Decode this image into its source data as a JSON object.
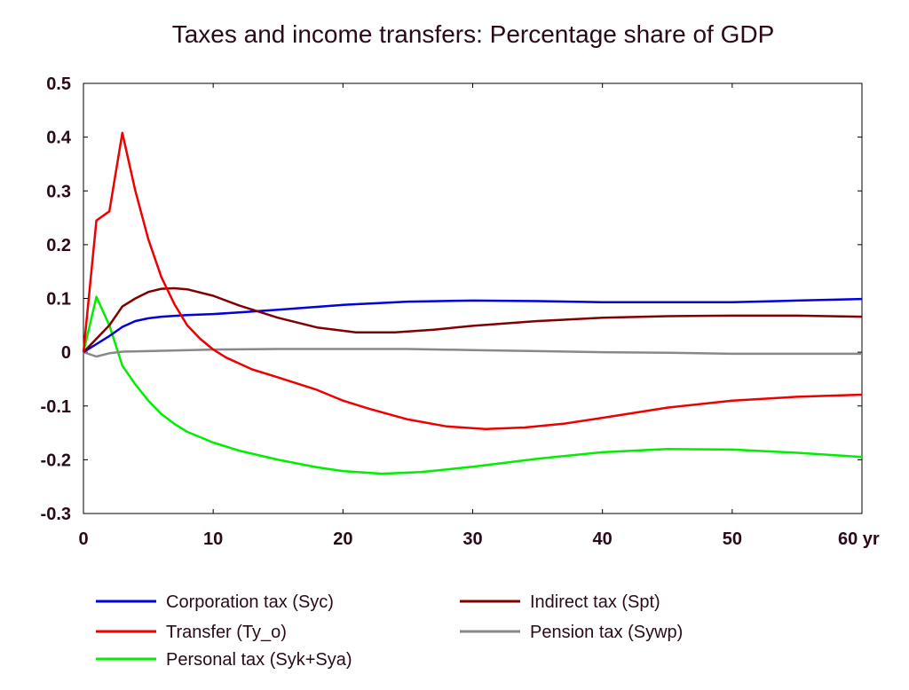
{
  "chart_data": {
    "type": "line",
    "title": "Taxes and income transfers: Percentage share of GDP",
    "xlabel": "",
    "ylabel": "",
    "xlim": [
      0,
      60
    ],
    "ylim": [
      -0.3,
      0.5
    ],
    "x_ticks": [
      {
        "value": 0,
        "label": "0"
      },
      {
        "value": 10,
        "label": "10"
      },
      {
        "value": 20,
        "label": "20"
      },
      {
        "value": 30,
        "label": "30"
      },
      {
        "value": 40,
        "label": "40"
      },
      {
        "value": 50,
        "label": "50"
      },
      {
        "value": 60,
        "label": "60 yr"
      }
    ],
    "y_ticks": [
      {
        "value": 0.5,
        "label": "0.5"
      },
      {
        "value": 0.4,
        "label": "0.4"
      },
      {
        "value": 0.3,
        "label": "0.3"
      },
      {
        "value": 0.2,
        "label": "0.2"
      },
      {
        "value": 0.1,
        "label": "0.1"
      },
      {
        "value": 0,
        "label": "0"
      },
      {
        "value": -0.1,
        "label": "-0.1"
      },
      {
        "value": -0.2,
        "label": "-0.2"
      },
      {
        "value": -0.3,
        "label": "-0.3"
      }
    ],
    "grid": false,
    "legend_position": "bottom",
    "series": [
      {
        "name": "Corporation tax (Syc)",
        "color": "#0000e0",
        "points": [
          [
            0,
            0
          ],
          [
            1,
            0.015
          ],
          [
            2,
            0.03
          ],
          [
            3,
            0.047
          ],
          [
            4,
            0.058
          ],
          [
            5,
            0.063
          ],
          [
            6,
            0.066
          ],
          [
            8,
            0.069
          ],
          [
            10,
            0.071
          ],
          [
            12,
            0.074
          ],
          [
            15,
            0.079
          ],
          [
            20,
            0.088
          ],
          [
            25,
            0.094
          ],
          [
            30,
            0.096
          ],
          [
            35,
            0.095
          ],
          [
            40,
            0.093
          ],
          [
            45,
            0.093
          ],
          [
            50,
            0.093
          ],
          [
            55,
            0.096
          ],
          [
            60,
            0.099
          ]
        ]
      },
      {
        "name": "Indirect tax (Spt)",
        "color": "#800000",
        "points": [
          [
            0,
            0
          ],
          [
            1,
            0.025
          ],
          [
            2,
            0.05
          ],
          [
            3,
            0.085
          ],
          [
            4,
            0.1
          ],
          [
            5,
            0.112
          ],
          [
            6,
            0.118
          ],
          [
            7,
            0.119
          ],
          [
            8,
            0.117
          ],
          [
            10,
            0.105
          ],
          [
            12,
            0.087
          ],
          [
            15,
            0.064
          ],
          [
            18,
            0.046
          ],
          [
            21,
            0.037
          ],
          [
            24,
            0.037
          ],
          [
            27,
            0.042
          ],
          [
            30,
            0.049
          ],
          [
            35,
            0.058
          ],
          [
            40,
            0.064
          ],
          [
            45,
            0.067
          ],
          [
            50,
            0.068
          ],
          [
            55,
            0.068
          ],
          [
            60,
            0.066
          ]
        ]
      },
      {
        "name": "Transfer (Ty_o)",
        "color": "#ee0000",
        "points": [
          [
            0,
            0
          ],
          [
            1,
            0.245
          ],
          [
            2,
            0.262
          ],
          [
            3,
            0.408
          ],
          [
            4,
            0.3
          ],
          [
            5,
            0.21
          ],
          [
            6,
            0.14
          ],
          [
            7,
            0.09
          ],
          [
            8,
            0.05
          ],
          [
            9,
            0.025
          ],
          [
            10,
            0.005
          ],
          [
            11,
            -0.01
          ],
          [
            13,
            -0.032
          ],
          [
            15,
            -0.047
          ],
          [
            18,
            -0.07
          ],
          [
            20,
            -0.09
          ],
          [
            22,
            -0.105
          ],
          [
            25,
            -0.125
          ],
          [
            28,
            -0.138
          ],
          [
            31,
            -0.143
          ],
          [
            34,
            -0.14
          ],
          [
            37,
            -0.133
          ],
          [
            40,
            -0.122
          ],
          [
            45,
            -0.103
          ],
          [
            50,
            -0.09
          ],
          [
            55,
            -0.083
          ],
          [
            60,
            -0.079
          ]
        ]
      },
      {
        "name": "Pension tax (Sywp)",
        "color": "#888888",
        "points": [
          [
            0,
            0
          ],
          [
            1,
            -0.008
          ],
          [
            2,
            -0.002
          ],
          [
            3,
            0.001
          ],
          [
            5,
            0.002
          ],
          [
            10,
            0.005
          ],
          [
            15,
            0.006
          ],
          [
            20,
            0.006
          ],
          [
            25,
            0.006
          ],
          [
            30,
            0.004
          ],
          [
            35,
            0.002
          ],
          [
            40,
            0
          ],
          [
            45,
            -0.001
          ],
          [
            50,
            -0.003
          ],
          [
            55,
            -0.003
          ],
          [
            60,
            -0.003
          ]
        ]
      },
      {
        "name": "Personal tax (Syk+Sya)",
        "color": "#00ee00",
        "points": [
          [
            0,
            0
          ],
          [
            1,
            0.103
          ],
          [
            2,
            0.05
          ],
          [
            3,
            -0.025
          ],
          [
            4,
            -0.06
          ],
          [
            5,
            -0.09
          ],
          [
            6,
            -0.115
          ],
          [
            7,
            -0.133
          ],
          [
            8,
            -0.148
          ],
          [
            10,
            -0.168
          ],
          [
            12,
            -0.183
          ],
          [
            15,
            -0.2
          ],
          [
            18,
            -0.214
          ],
          [
            20,
            -0.221
          ],
          [
            23,
            -0.226
          ],
          [
            26,
            -0.223
          ],
          [
            30,
            -0.213
          ],
          [
            35,
            -0.198
          ],
          [
            40,
            -0.186
          ],
          [
            45,
            -0.18
          ],
          [
            50,
            -0.181
          ],
          [
            55,
            -0.187
          ],
          [
            60,
            -0.195
          ]
        ]
      }
    ]
  },
  "legend": {
    "items": [
      {
        "label": "Corporation tax (Syc)",
        "color": "#0000e0"
      },
      {
        "label": "Indirect tax (Spt)",
        "color": "#800000"
      },
      {
        "label": "Transfer (Ty_o)",
        "color": "#ee0000"
      },
      {
        "label": "Pension tax (Sywp)",
        "color": "#888888"
      },
      {
        "label": "Personal tax (Syk+Sya)",
        "color": "#00ee00"
      }
    ]
  },
  "colors": {
    "text": "#2a0a1a",
    "axis": "#000000"
  }
}
